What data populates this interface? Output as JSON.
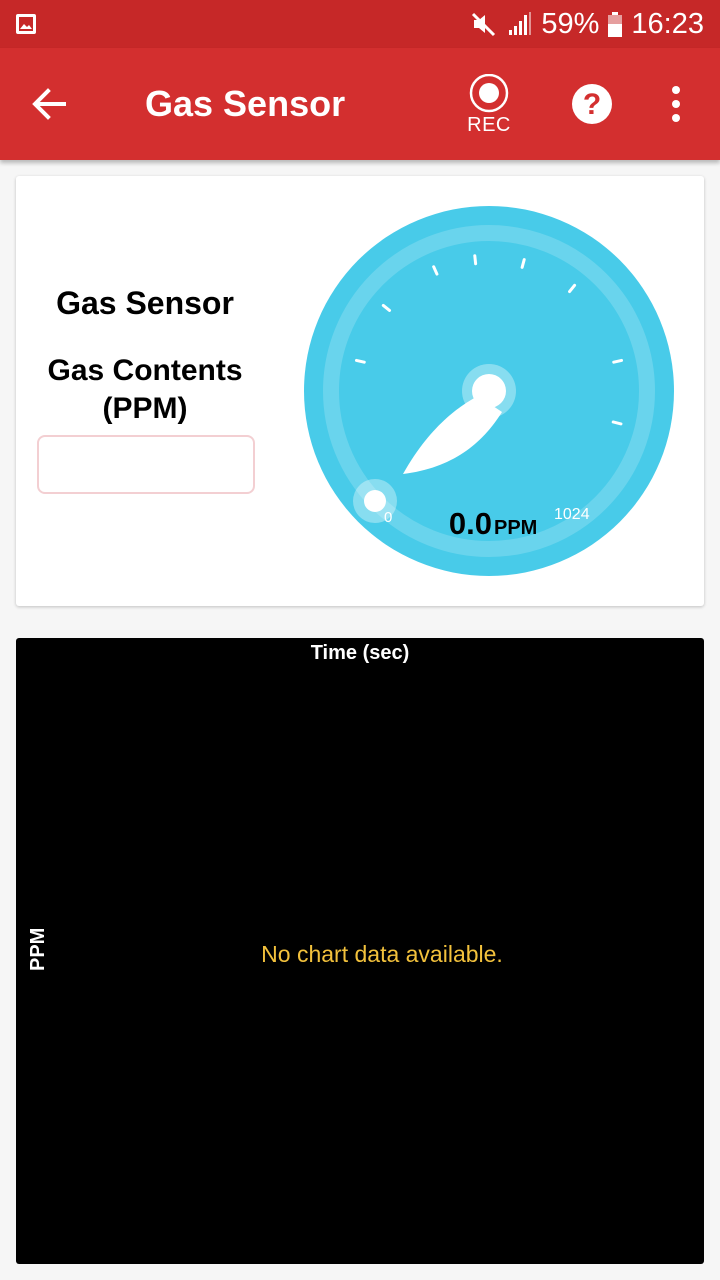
{
  "status_bar": {
    "battery_text": "59%",
    "time": "16:23"
  },
  "app_bar": {
    "title": "Gas Sensor",
    "rec_label": "REC",
    "help_glyph": "?"
  },
  "sensor_card": {
    "title": "Gas Sensor",
    "subtitle": "Gas Contents (PPM)",
    "field_value": ""
  },
  "gauge": {
    "value_text": "0.0",
    "unit": "PPM",
    "min_label": "0",
    "max_label": "1024",
    "min": 0,
    "max": 1024,
    "value": 0,
    "color": "#48cbe9"
  },
  "chart": {
    "xlabel": "Time (sec)",
    "ylabel": "PPM",
    "empty_message": "No chart data available."
  },
  "chart_data": {
    "type": "line",
    "xlabel": "Time (sec)",
    "ylabel": "PPM",
    "series": []
  },
  "colors": {
    "status_bar": "#c62828",
    "app_bar": "#d32f2f",
    "gauge": "#48cbe9",
    "chart_background": "#000000",
    "empty_message": "#f2c13c"
  },
  "icons": {
    "back": "arrow-back-icon",
    "record": "record-icon",
    "help": "help-icon",
    "more": "more-vert-icon",
    "gallery": "gallery-icon",
    "mute": "mute-icon",
    "signal": "signal-icon",
    "battery": "battery-icon"
  }
}
